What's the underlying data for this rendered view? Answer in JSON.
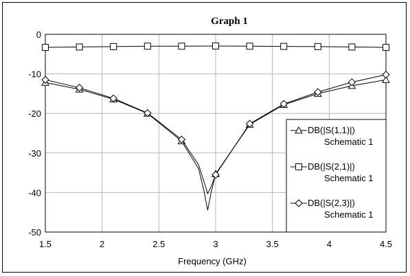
{
  "chart_data": {
    "type": "line",
    "title": "Graph 1",
    "xlabel": "Frequency (GHz)",
    "ylabel": "",
    "xlim": [
      1.5,
      4.5
    ],
    "ylim": [
      -50,
      0
    ],
    "xticks": [
      1.5,
      2,
      2.5,
      3,
      3.5,
      4,
      4.5
    ],
    "xtick_labels": [
      "1.5",
      "2",
      "2.5",
      "3",
      "3.5",
      "4",
      "4.5"
    ],
    "yticks": [
      0,
      -10,
      -20,
      -30,
      -40,
      -50
    ],
    "ytick_labels": [
      "0",
      "-10",
      "-20",
      "-30",
      "-40",
      "-50"
    ],
    "grid": true,
    "legend_position": "right",
    "series": [
      {
        "name": "DB(|S(1,1)|)",
        "name_line2": "Schematic 1",
        "marker": "triangle",
        "x": [
          1.5,
          1.8,
          2.1,
          2.4,
          2.7,
          2.85,
          2.9,
          2.93,
          2.96,
          3.0,
          3.3,
          3.6,
          3.9,
          4.2,
          4.5
        ],
        "y": [
          -12.2,
          -13.9,
          -16.4,
          -20.0,
          -27.0,
          -34.0,
          -40.0,
          -44.5,
          -40.0,
          -35.3,
          -22.8,
          -17.8,
          -15.0,
          -13.0,
          -11.5
        ],
        "marker_x": [
          1.5,
          1.8,
          2.1,
          2.4,
          2.7,
          3.0,
          3.3,
          3.6,
          3.9,
          4.2,
          4.5
        ]
      },
      {
        "name": "DB(|S(2,1)|)",
        "name_line2": "Schematic 1",
        "marker": "square",
        "x": [
          1.5,
          1.8,
          2.1,
          2.4,
          2.7,
          3.0,
          3.3,
          3.6,
          3.9,
          4.2,
          4.5
        ],
        "y": [
          -3.3,
          -3.2,
          -3.1,
          -3.0,
          -3.0,
          -2.95,
          -3.0,
          -3.05,
          -3.1,
          -3.2,
          -3.3
        ],
        "marker_x": [
          1.5,
          1.8,
          2.1,
          2.4,
          2.7,
          3.0,
          3.3,
          3.6,
          3.9,
          4.2,
          4.5
        ]
      },
      {
        "name": "DB(|S(2,3)|)",
        "name_line2": "Schematic 1",
        "marker": "diamond",
        "x": [
          1.5,
          1.8,
          2.1,
          2.4,
          2.7,
          2.85,
          2.9,
          2.93,
          2.96,
          3.0,
          3.3,
          3.6,
          3.9,
          4.2,
          4.5
        ],
        "y": [
          -11.5,
          -13.5,
          -16.2,
          -19.9,
          -26.6,
          -33.0,
          -37.5,
          -40.3,
          -38.5,
          -35.5,
          -22.6,
          -17.6,
          -14.6,
          -12.1,
          -10.2
        ],
        "marker_x": [
          1.5,
          1.8,
          2.1,
          2.4,
          2.7,
          3.0,
          3.3,
          3.6,
          3.9,
          4.2,
          4.5
        ]
      }
    ]
  }
}
